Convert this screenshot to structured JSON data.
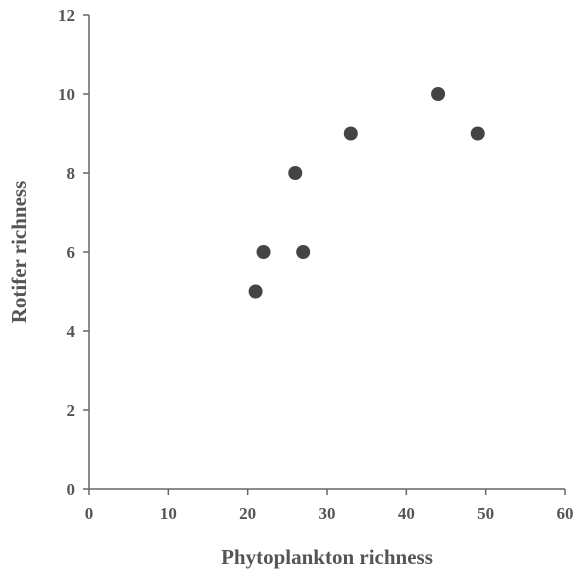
{
  "chart_data": {
    "type": "scatter",
    "x_label": "Phytoplankton richness",
    "y_label": "Rotifer richness",
    "x": [
      21,
      22,
      27,
      26,
      33,
      44,
      49
    ],
    "series": [
      {
        "color": "#444444",
        "values": [
          5,
          6,
          6,
          8,
          9,
          10,
          9
        ]
      }
    ],
    "xlim": [
      0,
      60
    ],
    "xticks": [
      0,
      10,
      20,
      30,
      40,
      50,
      60
    ],
    "ylim": [
      0,
      12
    ],
    "yticks": [
      0,
      2,
      4,
      6,
      8,
      10,
      12
    ],
    "grid": false
  }
}
